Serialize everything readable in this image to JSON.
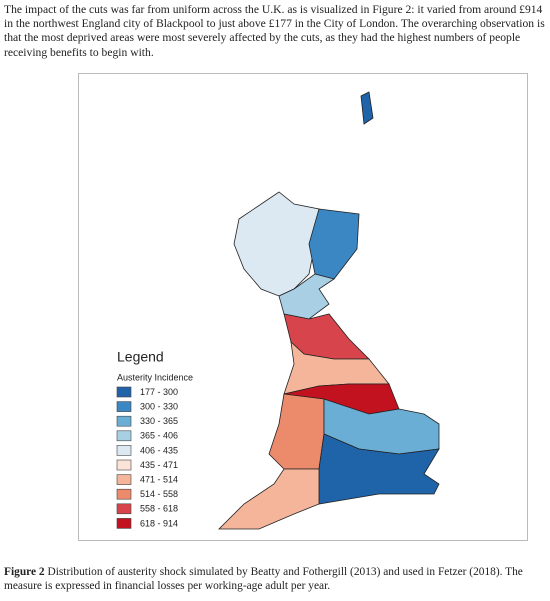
{
  "paragraph": "The impact of the cuts was far from uniform across the U.K. as is visualized in Figure 2: it varied from around £914 in the northwest England city of Blackpool to just above £177 in the City of London. The overarching observation is that the most deprived areas were most severely affected by the cuts, as they had the highest numbers of people receiving benefits to begin with.",
  "figure": {
    "legend": {
      "title": "Legend",
      "subtitle": "Austerity Incidence",
      "items": [
        {
          "label": "177 - 300",
          "color": "#1f63a8"
        },
        {
          "label": "300 - 330",
          "color": "#3a87c4"
        },
        {
          "label": "330 - 365",
          "color": "#6aaed6"
        },
        {
          "label": "365 - 406",
          "color": "#a9cfe5"
        },
        {
          "label": "406 - 435",
          "color": "#dce9f2"
        },
        {
          "label": "435 - 471",
          "color": "#fbe3d8"
        },
        {
          "label": "471 - 514",
          "color": "#f5b59a"
        },
        {
          "label": "514 - 558",
          "color": "#ec8a6c"
        },
        {
          "label": "558 - 618",
          "color": "#d8444c"
        },
        {
          "label": "618 - 914",
          "color": "#c3121f"
        }
      ]
    }
  },
  "caption": {
    "label": "Figure 2",
    "text": "Distribution of austerity shock simulated by Beatty and Fothergill (2013) and used in Fetzer (2018). The measure is expressed in financial losses per working-age adult per year."
  }
}
